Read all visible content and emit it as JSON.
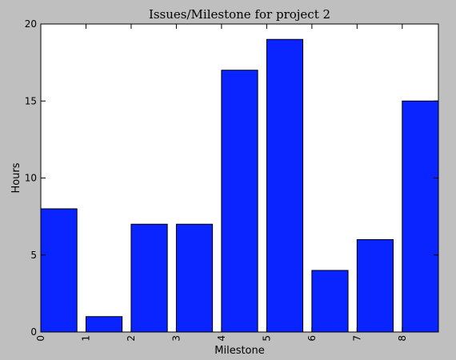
{
  "chart_data": {
    "type": "bar",
    "title": "Issues/Milestone for project 2",
    "xlabel": "Milestone",
    "ylabel": "Hours",
    "categories": [
      "0",
      "1",
      "2",
      "3",
      "4",
      "5",
      "6",
      "7",
      "8"
    ],
    "values": [
      8,
      1,
      7,
      7,
      17,
      19,
      4,
      6,
      15
    ],
    "x_ticks": [
      "0",
      "1",
      "2",
      "3",
      "4",
      "5",
      "6",
      "7",
      "8"
    ],
    "xlim": [
      0,
      8.8
    ],
    "ylim": [
      0,
      20
    ],
    "y_ticks": [
      "0",
      "5",
      "10",
      "15",
      "20"
    ],
    "bar_width": 0.8,
    "grid": false,
    "legend": "none",
    "colors": {
      "bar": "#0a24ff",
      "background": "#bfbfbf",
      "plot_background": "#ffffff",
      "axis": "#000000"
    }
  }
}
